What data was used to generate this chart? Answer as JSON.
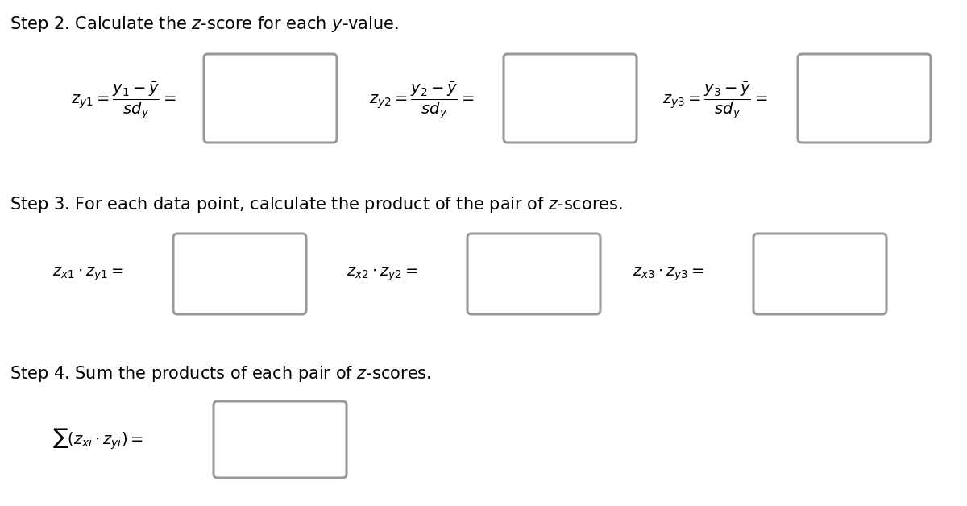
{
  "bg_color": "#ffffff",
  "text_color": "#000000",
  "box_edge_color": "#999999",
  "step2_title": "Step 2. Calculate the $z$-score for each $y$-value.",
  "step3_title": "Step 3. For each data point, calculate the product of the pair of $z$-scores.",
  "step4_title": "Step 4. Sum the products of each pair of $z$-scores.",
  "figsize": [
    12.0,
    6.28
  ],
  "dpi": 100,
  "title_fontsize": 15,
  "math_fontsize": 14,
  "xlim": [
    0,
    1200
  ],
  "ylim": [
    0,
    628
  ]
}
